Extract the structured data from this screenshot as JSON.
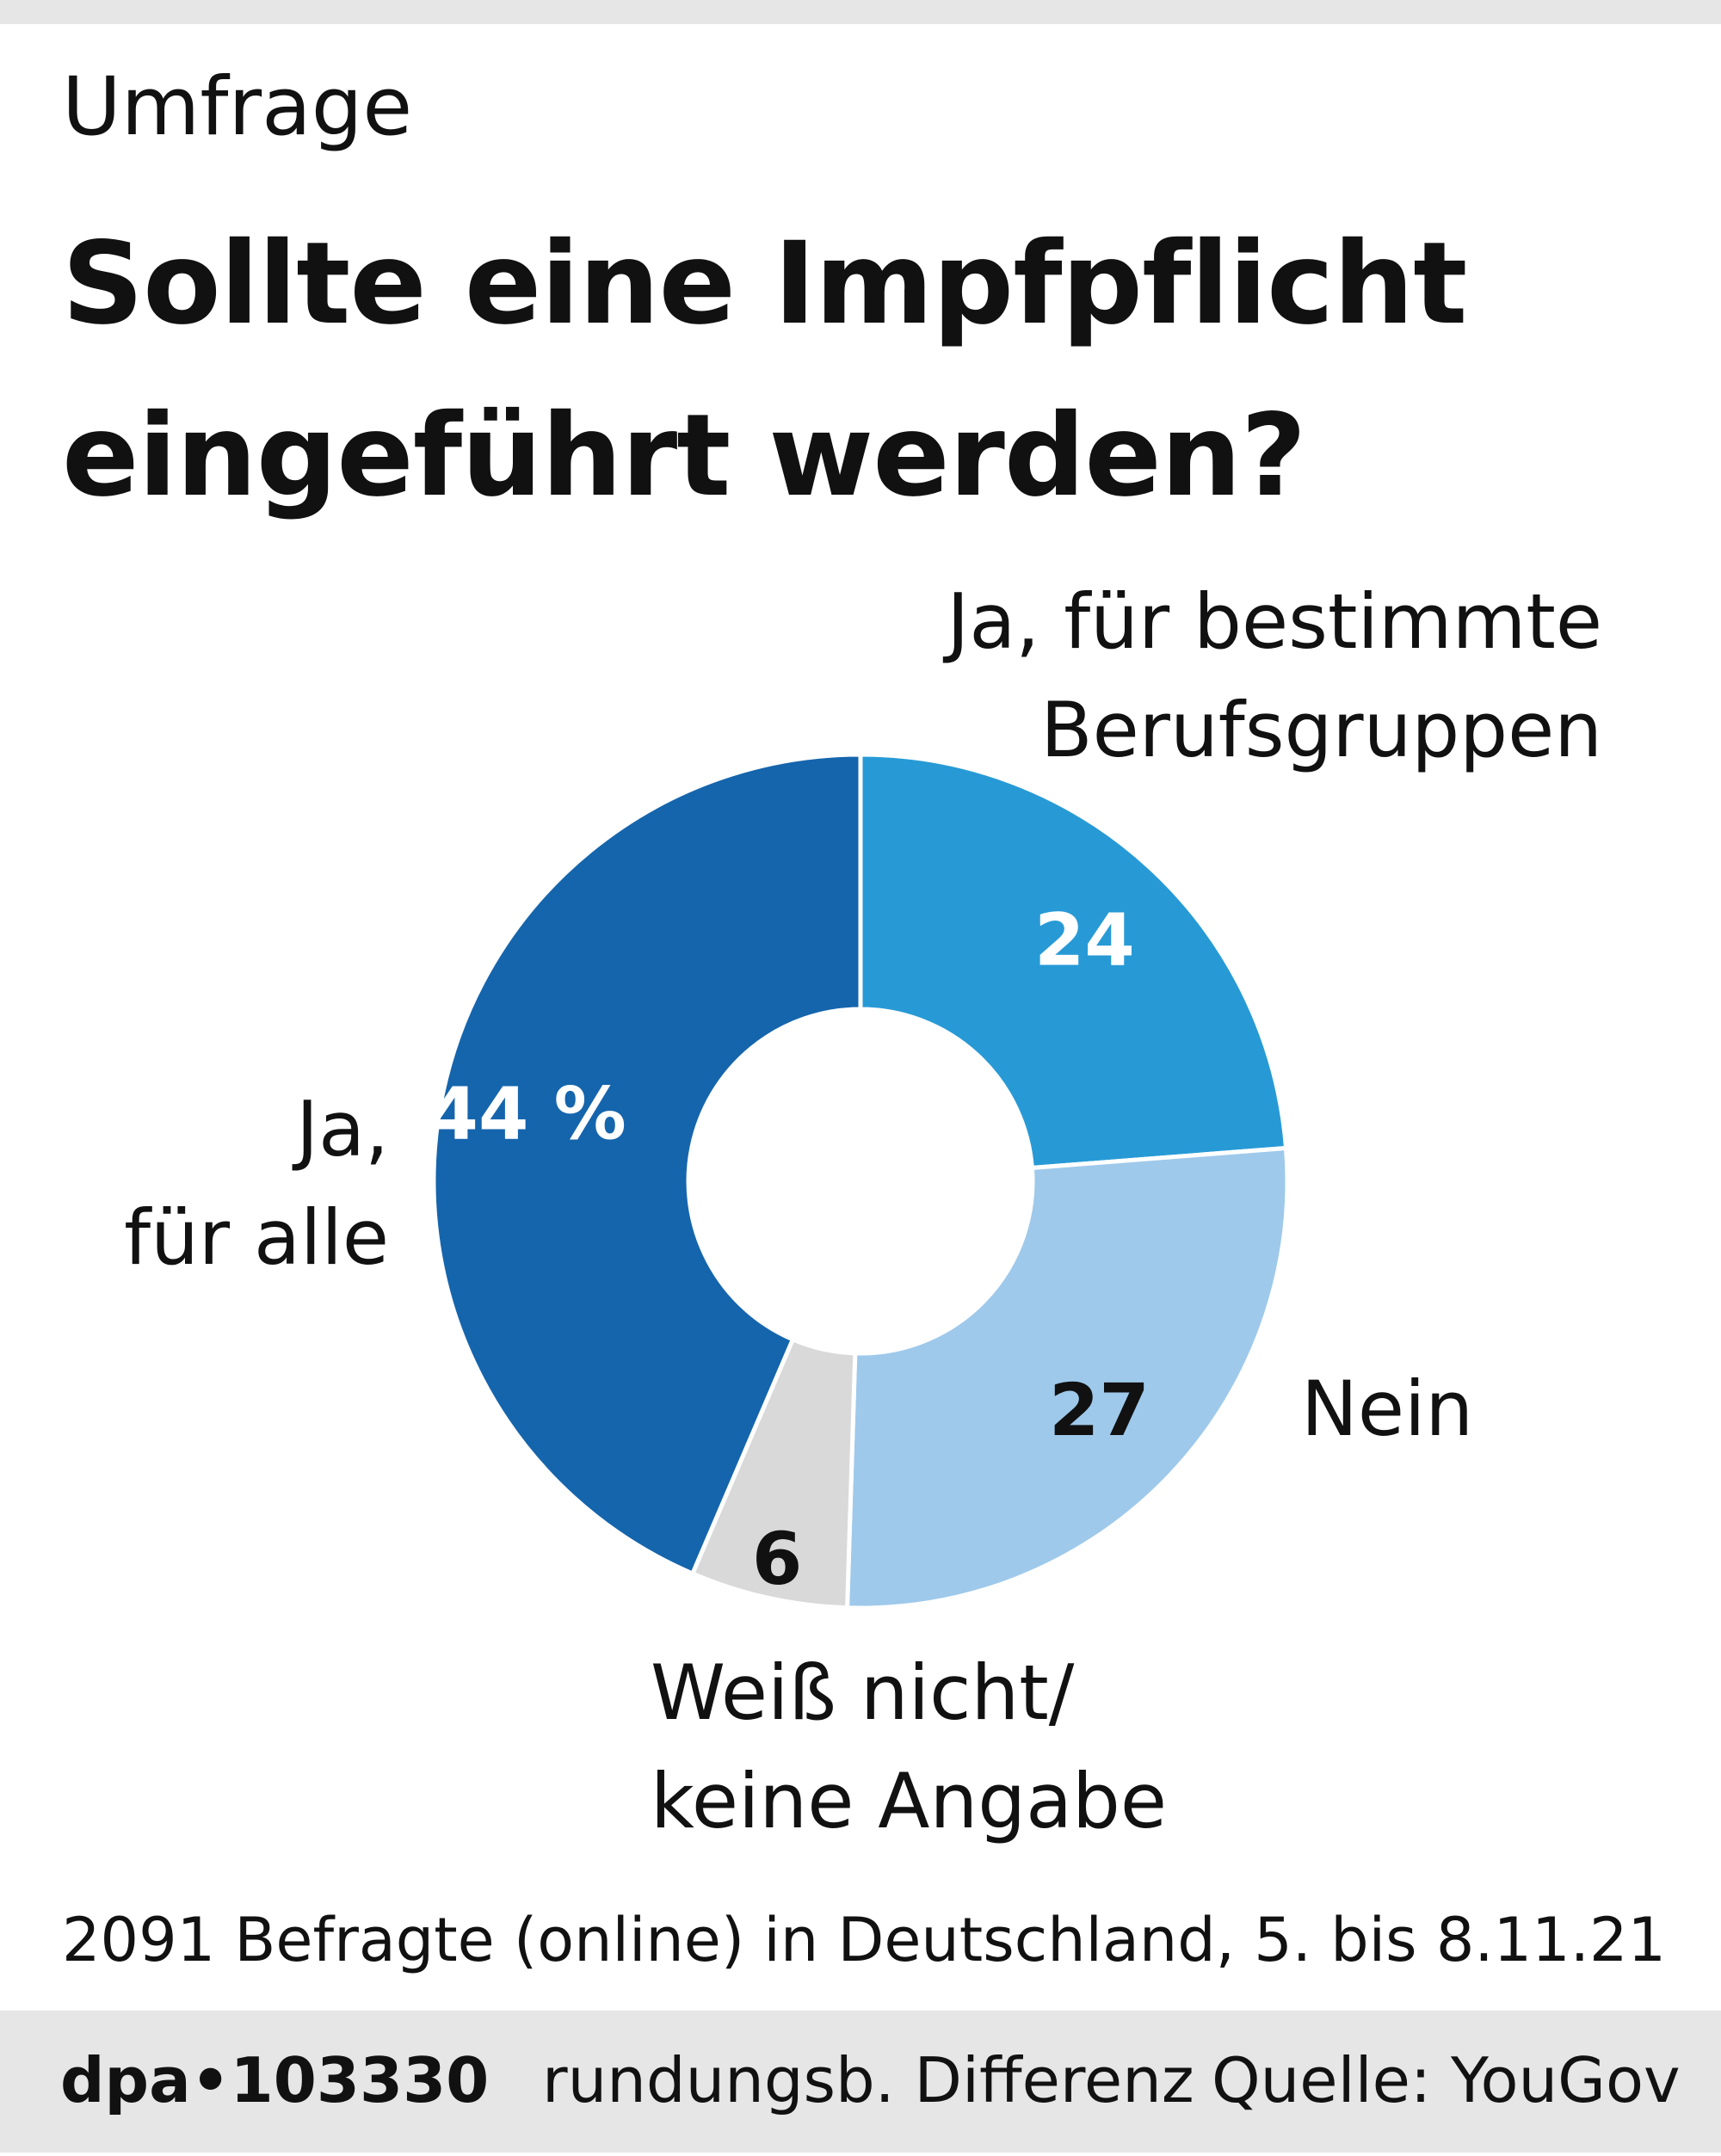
{
  "header": {
    "kicker": "Umfrage",
    "title_line1": "Sollte eine Impfpflicht",
    "title_line2": "eingeführt werden?"
  },
  "chart_data": {
    "type": "pie",
    "donut": true,
    "unit": "%",
    "categories": [
      "Ja, für bestimmte Berufsgruppen",
      "Nein",
      "Weiß nicht/ keine Angabe",
      "Ja, für alle"
    ],
    "values": [
      24,
      27,
      6,
      44
    ],
    "value_labels": [
      "24",
      "27",
      "6",
      "44 %"
    ],
    "colors": [
      "#279ad6",
      "#9ec9eb",
      "#d9d9d9",
      "#1565ad"
    ],
    "label_colors": [
      "#ffffff",
      "#111111",
      "#111111",
      "#ffffff"
    ]
  },
  "labels": {
    "berufsgruppen_1": "Ja, für bestimmte",
    "berufsgruppen_2": "Berufsgruppen",
    "nein": "Nein",
    "weiss_1": "Weiß nicht/",
    "weiss_2": "keine Angabe",
    "alle_1": "Ja,",
    "alle_2": "für alle"
  },
  "footnote": "2091 Befragte (online) in Deutschland, 5. bis 8.11.21",
  "footer": {
    "id": "dpa•103330",
    "rounding": "rundungsb. Differenz",
    "source": "Quelle: YouGov"
  }
}
